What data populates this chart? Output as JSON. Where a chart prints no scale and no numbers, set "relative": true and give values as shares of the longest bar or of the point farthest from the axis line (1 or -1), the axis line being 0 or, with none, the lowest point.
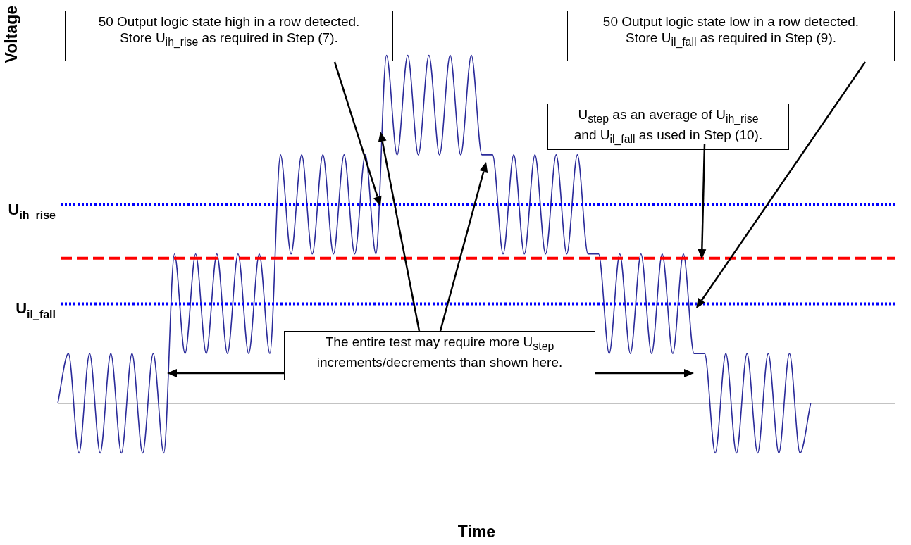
{
  "chart_data": {
    "type": "line",
    "xlabel": "Time",
    "ylabel": "Voltage",
    "relative": true,
    "marker": "none",
    "line_style": "solid",
    "categories": [
      null,
      null,
      null,
      null,
      null,
      null,
      null,
      null,
      null,
      null,
      null,
      null,
      null,
      null,
      null,
      null,
      null,
      null,
      null,
      null,
      null,
      null,
      null,
      null,
      null,
      null,
      null,
      null,
      null,
      null,
      null,
      null,
      null,
      null,
      null,
      null,
      null,
      null,
      null,
      null,
      null,
      null,
      null,
      null,
      null,
      null,
      null,
      null,
      null,
      null,
      null,
      null,
      null,
      null,
      null,
      null,
      null,
      null,
      null,
      null,
      null,
      null,
      null,
      null,
      null,
      null,
      null,
      null,
      null,
      null,
      null,
      null,
      null,
      null,
      null,
      null,
      null,
      null,
      null,
      null
    ],
    "series": [
      {
        "color": "#2b2b9a",
        "values": [
          0,
          0.143,
          -0.143,
          0.143,
          -0.143,
          0.143,
          -0.143,
          0.143,
          -0.143,
          0.143,
          -0.143,
          0.429,
          0.143,
          0.429,
          0.143,
          0.429,
          0.143,
          0.429,
          0.143,
          0.429,
          0.143,
          0.714,
          0.429,
          0.714,
          0.429,
          0.714,
          0.429,
          0.714,
          0.429,
          0.714,
          0.429,
          1,
          0.714,
          1,
          0.714,
          1,
          0.714,
          1,
          0.714,
          1,
          0.714,
          0.714,
          0.429,
          0.714,
          0.429,
          0.714,
          0.429,
          0.714,
          0.429,
          0.714,
          0.429,
          0.429,
          0.143,
          0.429,
          0.143,
          0.429,
          0.143,
          0.429,
          0.143,
          0.429,
          0.143,
          0.143,
          -0.143,
          0.143,
          -0.143,
          0.143,
          -0.143,
          0.143,
          -0.143,
          0.143,
          -0.143,
          0,
          null,
          null,
          null,
          null,
          null,
          null,
          null,
          null
        ]
      }
    ],
    "ref_lines": [
      {
        "axis": "y",
        "value": 0.571,
        "label": "U$_{ih_rise}$",
        "color": "#0000ff",
        "line_style": "dotted"
      },
      {
        "axis": "y",
        "value": 0.417,
        "color": "#ff0000",
        "line_style": "dashed"
      },
      {
        "axis": "y",
        "value": 0.286,
        "label": "U$_{il_fall}$",
        "color": "#0000ff",
        "line_style": "dotted"
      }
    ],
    "annotations": [
      "50 Output logic state high in a row detected.\nStore U$_{ih_rise}$ as required in Step (7).",
      "50 Output logic state low in a row detected.\nStore U$_{il_fall}$ as required in Step (9).",
      "U$_{step}$ as an average of U$_{ih_rise}$\nand U$_{il_fall}$ as used in Step (10).",
      "The entire test may require more U$_{step}$\nincrements/decrements than shown here."
    ]
  }
}
